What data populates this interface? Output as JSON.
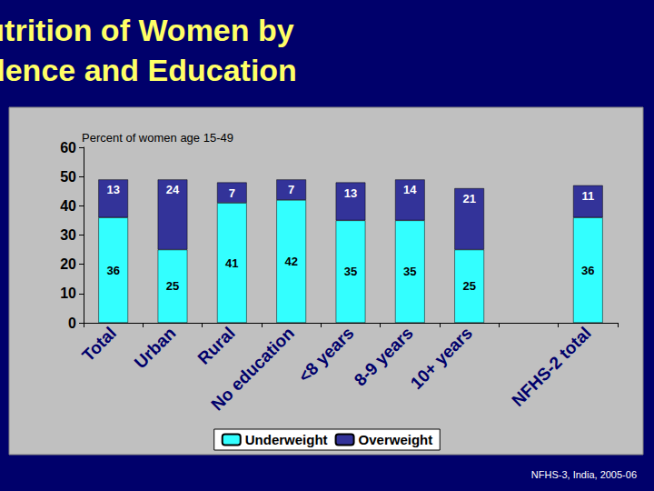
{
  "chart_data": {
    "type": "bar",
    "title": "Malnutrition of Women by Residence and Education",
    "y_label": "Percent of women age 15-49",
    "annotation": "NFHS-3, India, 2005-06",
    "categories": [
      "Total",
      "Urban",
      "Rural",
      "No education",
      "<8 years",
      "8-9 years",
      "10+ years",
      null,
      "NFHS-2 total"
    ],
    "series": [
      {
        "name": "Underweight",
        "color": "#33FFFF",
        "values": [
          36,
          25,
          41,
          42,
          35,
          35,
          25,
          null,
          36
        ]
      },
      {
        "name": "Overweight",
        "color": "#333399",
        "values": [
          13,
          24,
          7,
          7,
          13,
          14,
          21,
          null,
          11
        ]
      }
    ],
    "ylim": [
      0,
      60
    ],
    "yticks": [
      0,
      10,
      20,
      30,
      40,
      50,
      60
    ],
    "stacked": true,
    "data_labels": true,
    "grid": false,
    "legend": "bottom"
  }
}
